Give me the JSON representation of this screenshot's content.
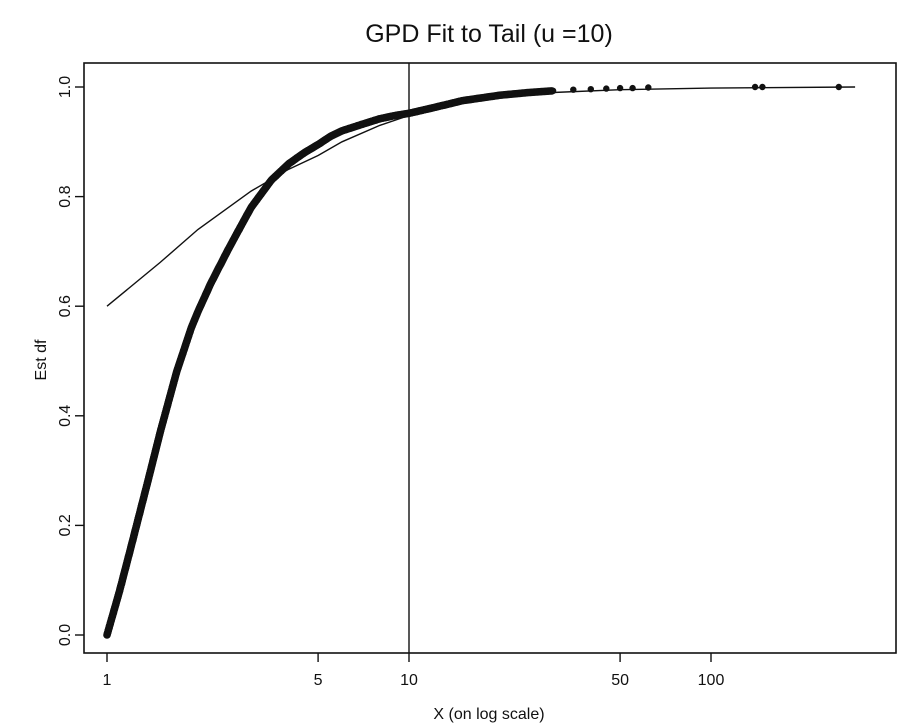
{
  "chart_data": {
    "type": "scatter",
    "title": "GPD Fit to Tail (u =10)",
    "xlabel": "X (on log scale)",
    "ylabel": "Est df",
    "x_scale": "log",
    "xlim": [
      0.9,
      300
    ],
    "ylim": [
      -0.02,
      1.03
    ],
    "x_ticks": [
      1,
      5,
      10,
      50,
      100
    ],
    "x_tick_labels": [
      "1",
      "5",
      "10",
      "50",
      "100"
    ],
    "y_ticks": [
      0.0,
      0.2,
      0.4,
      0.6,
      0.8,
      1.0
    ],
    "y_tick_labels": [
      "0.0",
      "0.2",
      "0.4",
      "0.6",
      "0.8",
      "1.0"
    ],
    "grid": false,
    "threshold_u": 10,
    "empirical_df": {
      "x": [
        1.0,
        1.1,
        1.2,
        1.35,
        1.5,
        1.7,
        1.9,
        2.0,
        2.2,
        2.5,
        2.8,
        3.0,
        3.5,
        4.0,
        4.5,
        5.0,
        5.5,
        6.0,
        7.0,
        8.0,
        9.0,
        10.0,
        12.0,
        15.0,
        20.0,
        25.0,
        30.0,
        35.0,
        40.0,
        45.0,
        50.0,
        55.0,
        62.0,
        140.0,
        148.0,
        265.0
      ],
      "y": [
        0.0,
        0.08,
        0.16,
        0.27,
        0.37,
        0.48,
        0.56,
        0.59,
        0.64,
        0.7,
        0.75,
        0.78,
        0.83,
        0.86,
        0.88,
        0.895,
        0.91,
        0.92,
        0.932,
        0.942,
        0.948,
        0.952,
        0.962,
        0.975,
        0.985,
        0.99,
        0.993,
        0.995,
        0.996,
        0.997,
        0.998,
        0.998,
        0.999,
        1.0,
        1.0,
        1.0
      ]
    },
    "gpd_fit": {
      "x": [
        1.0,
        1.5,
        2.0,
        3.0,
        4.0,
        5.0,
        6.0,
        8.0,
        10.0,
        15.0,
        20.0,
        30.0,
        50.0,
        100.0,
        300.0
      ],
      "y": [
        0.6,
        0.68,
        0.74,
        0.81,
        0.85,
        0.875,
        0.9,
        0.93,
        0.948,
        0.97,
        0.98,
        0.99,
        0.995,
        0.998,
        1.0
      ]
    }
  }
}
